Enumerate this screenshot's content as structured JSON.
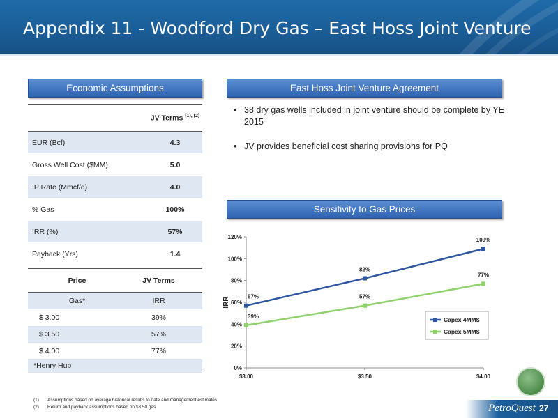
{
  "header": {
    "title": "Appendix 11 - Woodford Dry Gas – East Hoss Joint Venture"
  },
  "sections": {
    "economic_assumptions": "Economic Assumptions",
    "jv_agreement": "East Hoss Joint Venture Agreement",
    "sensitivity": "Sensitivity to Gas Prices"
  },
  "assumptions_table": {
    "header": "JV Terms",
    "header_sup": "(1), (2)",
    "rows": [
      {
        "label": "EUR (Bcf)",
        "value": "4.3"
      },
      {
        "label": "Gross Well Cost ($MM)",
        "value": "5.0"
      },
      {
        "label": "IP Rate (Mmcf/d)",
        "value": "4.0"
      },
      {
        "label": "% Gas",
        "value": "100%"
      },
      {
        "label": "IRR (%)",
        "value": "57%"
      },
      {
        "label": "Payback (Yrs)",
        "value": "1.4"
      }
    ]
  },
  "price_table": {
    "headers": [
      "Price",
      "JV Terms"
    ],
    "subheaders": [
      "Gas*",
      "IRR"
    ],
    "rows": [
      {
        "price": "$ 3.00",
        "irr": "39%"
      },
      {
        "price": "$ 3.50",
        "irr": "57%"
      },
      {
        "price": "$ 4.00",
        "irr": "77%"
      }
    ],
    "footnote": "*Henry Hub"
  },
  "bullets": [
    "38 dry gas wells included in joint venture should be complete by YE 2015",
    "JV provides beneficial cost sharing provisions for PQ"
  ],
  "footnotes": [
    {
      "num": "(1)",
      "text": "Assumptions based on average historical results to date and management estimates"
    },
    {
      "num": "(2)",
      "text": "Return and payback assumptions based on $3.50 gas"
    }
  ],
  "brand": {
    "name": "PetroQuest",
    "page": "27"
  },
  "chart_data": {
    "type": "line",
    "x": [
      "$3.00",
      "$3.50",
      "$4.00"
    ],
    "ylabel": "IRR",
    "yticks": [
      "0%",
      "20%",
      "40%",
      "60%",
      "80%",
      "100%",
      "120%"
    ],
    "ylim": [
      0,
      120
    ],
    "grid": false,
    "legend_position": "right",
    "series": [
      {
        "name": "Capex 4MM$",
        "values": [
          57,
          82,
          109
        ],
        "labels": [
          "57%",
          "82%",
          "109%"
        ],
        "color": "#2e55a0"
      },
      {
        "name": "Capex 5MM$",
        "values": [
          39,
          57,
          77
        ],
        "labels": [
          "39%",
          "57%",
          "77%"
        ],
        "color": "#8fd16a"
      }
    ]
  }
}
